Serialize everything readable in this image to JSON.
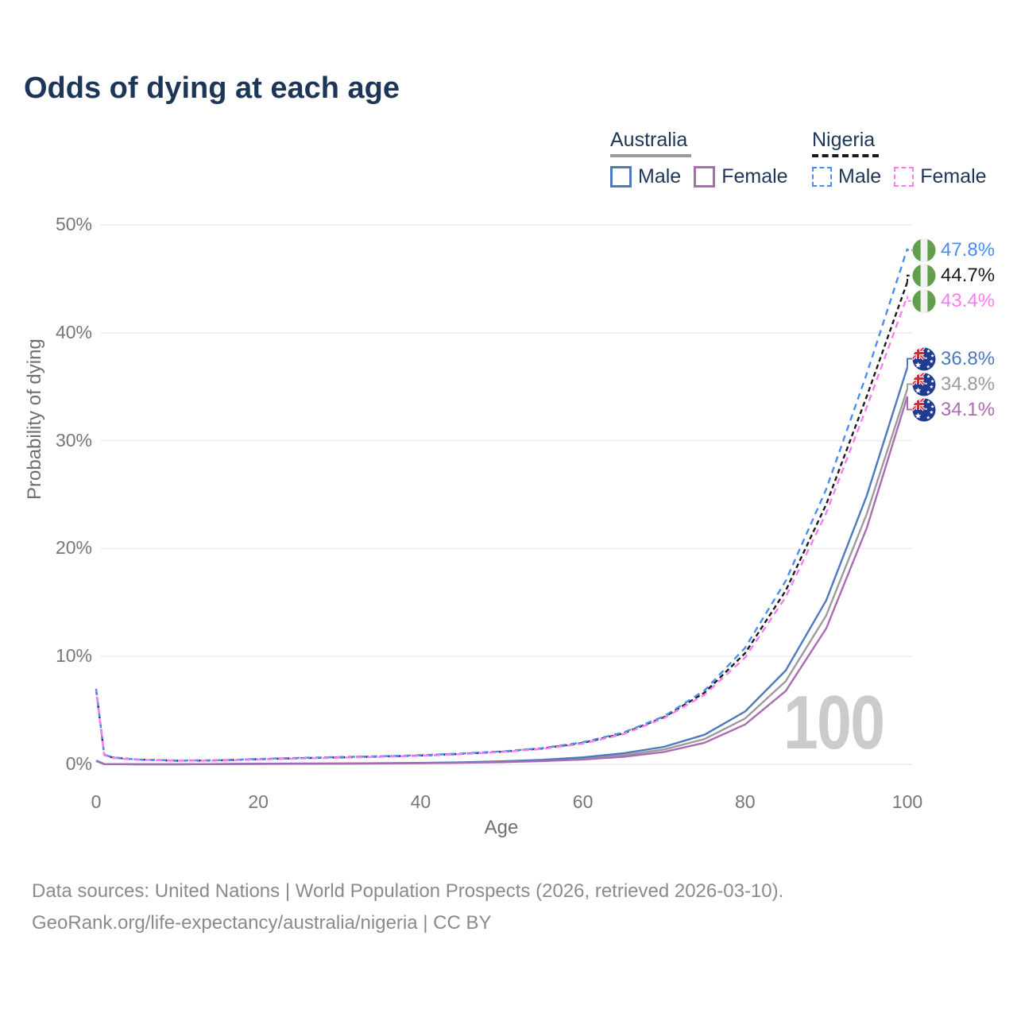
{
  "title": "Odds of dying at each age",
  "legend": {
    "groups": [
      {
        "label": "Australia",
        "line_style": "solid",
        "line_color": "#9b9b9b",
        "items": [
          {
            "label": "Male",
            "color": "#4e79bd",
            "style": "solid"
          },
          {
            "label": "Female",
            "color": "#aa6cb0",
            "style": "solid"
          }
        ]
      },
      {
        "label": "Nigeria",
        "line_style": "dashed",
        "line_color": "#1a1a1a",
        "items": [
          {
            "label": "Male",
            "color": "#4a8df0",
            "style": "dashed"
          },
          {
            "label": "Female",
            "color": "#fa7df0",
            "style": "dashed"
          }
        ]
      }
    ]
  },
  "watermark": "100",
  "footer": {
    "line1": "Data sources: United Nations | World Population Prospects (2026, retrieved 2026-03-10).",
    "line2": "GeoRank.org/life-expectancy/australia/nigeria | CC BY"
  },
  "flags": {
    "nigeria": {
      "green": "#619e4d",
      "white": "#f1f1ee"
    },
    "australia": {
      "blue": "#1f3c94",
      "red": "#d8253c",
      "white": "#ffffff"
    }
  },
  "chart_data": {
    "type": "line",
    "title": "Odds of dying at each age",
    "xlabel": "Age",
    "ylabel": "Probability of dying",
    "xlim": [
      0,
      100
    ],
    "ylim": [
      0,
      50
    ],
    "x_ticks": [
      0,
      20,
      40,
      60,
      80,
      100
    ],
    "y_ticks": [
      0,
      10,
      20,
      30,
      40,
      50
    ],
    "y_tick_suffix": "%",
    "grid": "horizontal",
    "legend_position": "top-right",
    "x": [
      0,
      1,
      2,
      5,
      10,
      15,
      20,
      25,
      30,
      35,
      40,
      45,
      50,
      55,
      60,
      65,
      70,
      75,
      80,
      85,
      90,
      95,
      100
    ],
    "series": [
      {
        "name": "Nigeria Male",
        "country": "nigeria",
        "sex": "male",
        "style": "dashed",
        "color": "#4a8df0",
        "end_label": "47.8%",
        "end_value": 47.8,
        "values": [
          7.0,
          0.9,
          0.65,
          0.45,
          0.35,
          0.38,
          0.5,
          0.6,
          0.68,
          0.75,
          0.85,
          1.0,
          1.2,
          1.5,
          2.05,
          2.95,
          4.45,
          6.85,
          10.8,
          17.0,
          25.5,
          36.2,
          47.8
        ]
      },
      {
        "name": "Nigeria Both sexes",
        "country": "nigeria",
        "sex": "both",
        "style": "dashed",
        "color": "#1a1a1a",
        "end_label": "44.7%",
        "end_value": 44.7,
        "values": [
          6.9,
          0.88,
          0.63,
          0.44,
          0.34,
          0.36,
          0.48,
          0.57,
          0.65,
          0.72,
          0.82,
          0.97,
          1.17,
          1.47,
          1.98,
          2.87,
          4.37,
          6.65,
          10.3,
          16.1,
          24.1,
          34.1,
          44.7
        ]
      },
      {
        "name": "Nigeria Female",
        "country": "nigeria",
        "sex": "female",
        "style": "dashed",
        "color": "#fa7df0",
        "end_label": "43.4%",
        "end_value": 43.4,
        "values": [
          6.8,
          0.85,
          0.6,
          0.42,
          0.33,
          0.34,
          0.45,
          0.54,
          0.62,
          0.69,
          0.79,
          0.94,
          1.14,
          1.43,
          1.92,
          2.8,
          4.28,
          6.45,
          9.9,
          15.5,
          23.3,
          33.1,
          43.4
        ]
      },
      {
        "name": "Australia Male",
        "country": "australia",
        "sex": "male",
        "style": "solid",
        "color": "#4e79bd",
        "end_label": "36.8%",
        "end_value": 36.8,
        "values": [
          0.35,
          0.03,
          0.02,
          0.01,
          0.01,
          0.03,
          0.06,
          0.07,
          0.08,
          0.1,
          0.13,
          0.19,
          0.28,
          0.42,
          0.65,
          1.02,
          1.62,
          2.75,
          4.9,
          8.7,
          15.2,
          24.9,
          36.8
        ]
      },
      {
        "name": "Australia Both sexes",
        "country": "australia",
        "sex": "both",
        "style": "solid",
        "color": "#9b9b9b",
        "end_label": "34.8%",
        "end_value": 34.8,
        "values": [
          0.32,
          0.028,
          0.018,
          0.01,
          0.01,
          0.025,
          0.05,
          0.06,
          0.07,
          0.09,
          0.11,
          0.16,
          0.24,
          0.36,
          0.54,
          0.85,
          1.38,
          2.35,
          4.25,
          7.7,
          13.8,
          23.2,
          34.8
        ]
      },
      {
        "name": "Australia Female",
        "country": "australia",
        "sex": "female",
        "style": "solid",
        "color": "#aa6cb0",
        "end_label": "34.1%",
        "end_value": 34.1,
        "values": [
          0.3,
          0.025,
          0.015,
          0.01,
          0.01,
          0.02,
          0.04,
          0.05,
          0.06,
          0.08,
          0.1,
          0.14,
          0.2,
          0.3,
          0.45,
          0.7,
          1.15,
          2.0,
          3.7,
          6.8,
          12.6,
          21.9,
          34.1
        ]
      }
    ]
  }
}
